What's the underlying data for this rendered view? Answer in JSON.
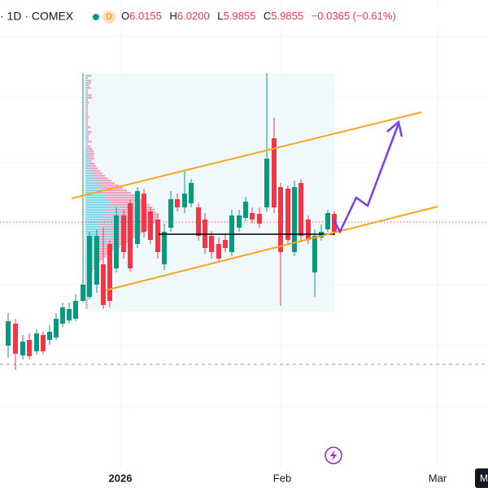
{
  "header": {
    "symbol": "· 1D · COMEX",
    "badge": "D",
    "open": {
      "label": "O",
      "value": "6.0155"
    },
    "high": {
      "label": "H",
      "value": "6.0200"
    },
    "low": {
      "label": "L",
      "value": "5.9855"
    },
    "close": {
      "label": "C",
      "value": "5.9855"
    },
    "change": "−0.0365 (−0.61%)"
  },
  "time_axis": {
    "labels": [
      "2026",
      "Feb",
      "Mar"
    ]
  },
  "corner_button": "M"
}
